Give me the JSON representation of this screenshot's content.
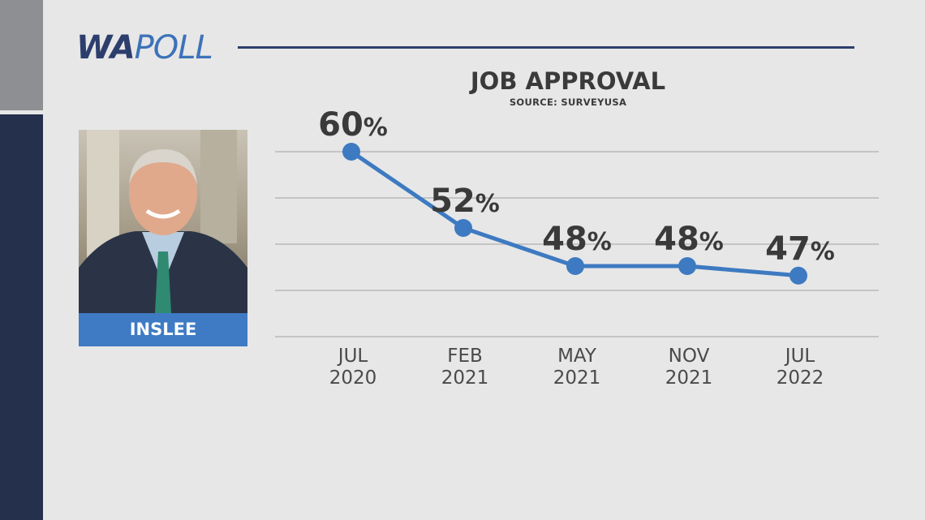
{
  "logo": {
    "bold": "WA",
    "light": "POLL"
  },
  "candidate": {
    "name": "INSLEE"
  },
  "colors": {
    "line": "#3d7ac1",
    "marker": "#3d7ac1",
    "gridline": "#b0b0b0",
    "label": "#3a3a3a",
    "tick": "#4a4a4a",
    "accent_navy": "#24304c",
    "name_box": "#3e7bc4"
  },
  "chart_data": {
    "type": "line",
    "title": "JOB APPROVAL",
    "subtitle": "SOURCE: SURVEYUSA",
    "categories": [
      [
        "JUL",
        "2020"
      ],
      [
        "FEB",
        "2021"
      ],
      [
        "MAY",
        "2021"
      ],
      [
        "NOV",
        "2021"
      ],
      [
        "JUL",
        "2022"
      ]
    ],
    "values": [
      60,
      52,
      48,
      48,
      47
    ],
    "value_labels": [
      "60",
      "52",
      "48",
      "48",
      "47"
    ],
    "unit": "%",
    "ylim": [
      40,
      62
    ],
    "grid": true
  }
}
